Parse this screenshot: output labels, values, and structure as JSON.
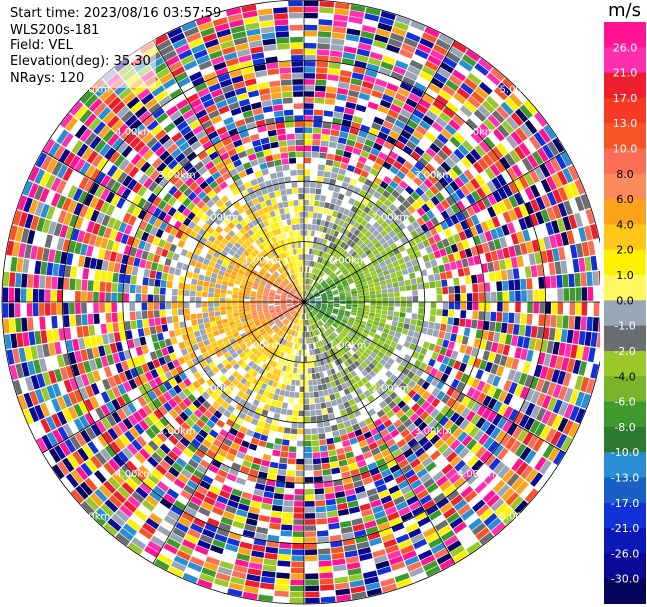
{
  "header": {
    "start_time": "Start time: 2023/08/16 03:57:59",
    "instrument": "WLS200s-181",
    "field": "Field: VEL",
    "elevation": "Elevation(deg): 35.30",
    "nrays": "NRays: 120"
  },
  "colorbar": {
    "unit": "m/s",
    "ticks": [
      "26.0",
      "21.0",
      "17.0",
      "13.0",
      "10.0",
      "8.0",
      "6.0",
      "4.0",
      "2.0",
      "1.0",
      "0.0",
      "-1.0",
      "-2.0",
      "-4.0",
      "-6.0",
      "-8.0",
      "-10.0",
      "-13.0",
      "-17.0",
      "-21.0",
      "-26.0",
      "-30.0"
    ],
    "colors": [
      "#ff1493",
      "#ff2fb0",
      "#ee1e2e",
      "#f63a24",
      "#f65426",
      "#f96e54",
      "#fb8a5c",
      "#fba31b",
      "#ffc71a",
      "#fff200",
      "#fff75e",
      "#9aa5b5",
      "#6b6e70",
      "#9ac82a",
      "#79b42c",
      "#3e9a2c",
      "#2b7a2f",
      "#2a8ed3",
      "#1a5fc6",
      "#1232d8",
      "#0b18b8",
      "#0a0a96",
      "#05055c"
    ]
  },
  "chart_data": {
    "type": "heatmap",
    "title": "",
    "field": "VEL",
    "units": "m/s",
    "elevation_deg": 35.3,
    "nrays": 120,
    "range_ring_labels": [
      "1.00km",
      "2.00km",
      "3.00km",
      "4.00km",
      "5.00km"
    ],
    "range_rings_km": [
      1,
      2,
      3,
      4,
      5
    ],
    "max_range_km": 5,
    "colorbar_min": -30.0,
    "colorbar_max": 26.0,
    "description_of_pattern": "near field: west half yellow/orange (+2 to +13 m/s), east half green/blue (-2 to -10 m/s); beyond about 2 km gates are noisy multicolour"
  }
}
